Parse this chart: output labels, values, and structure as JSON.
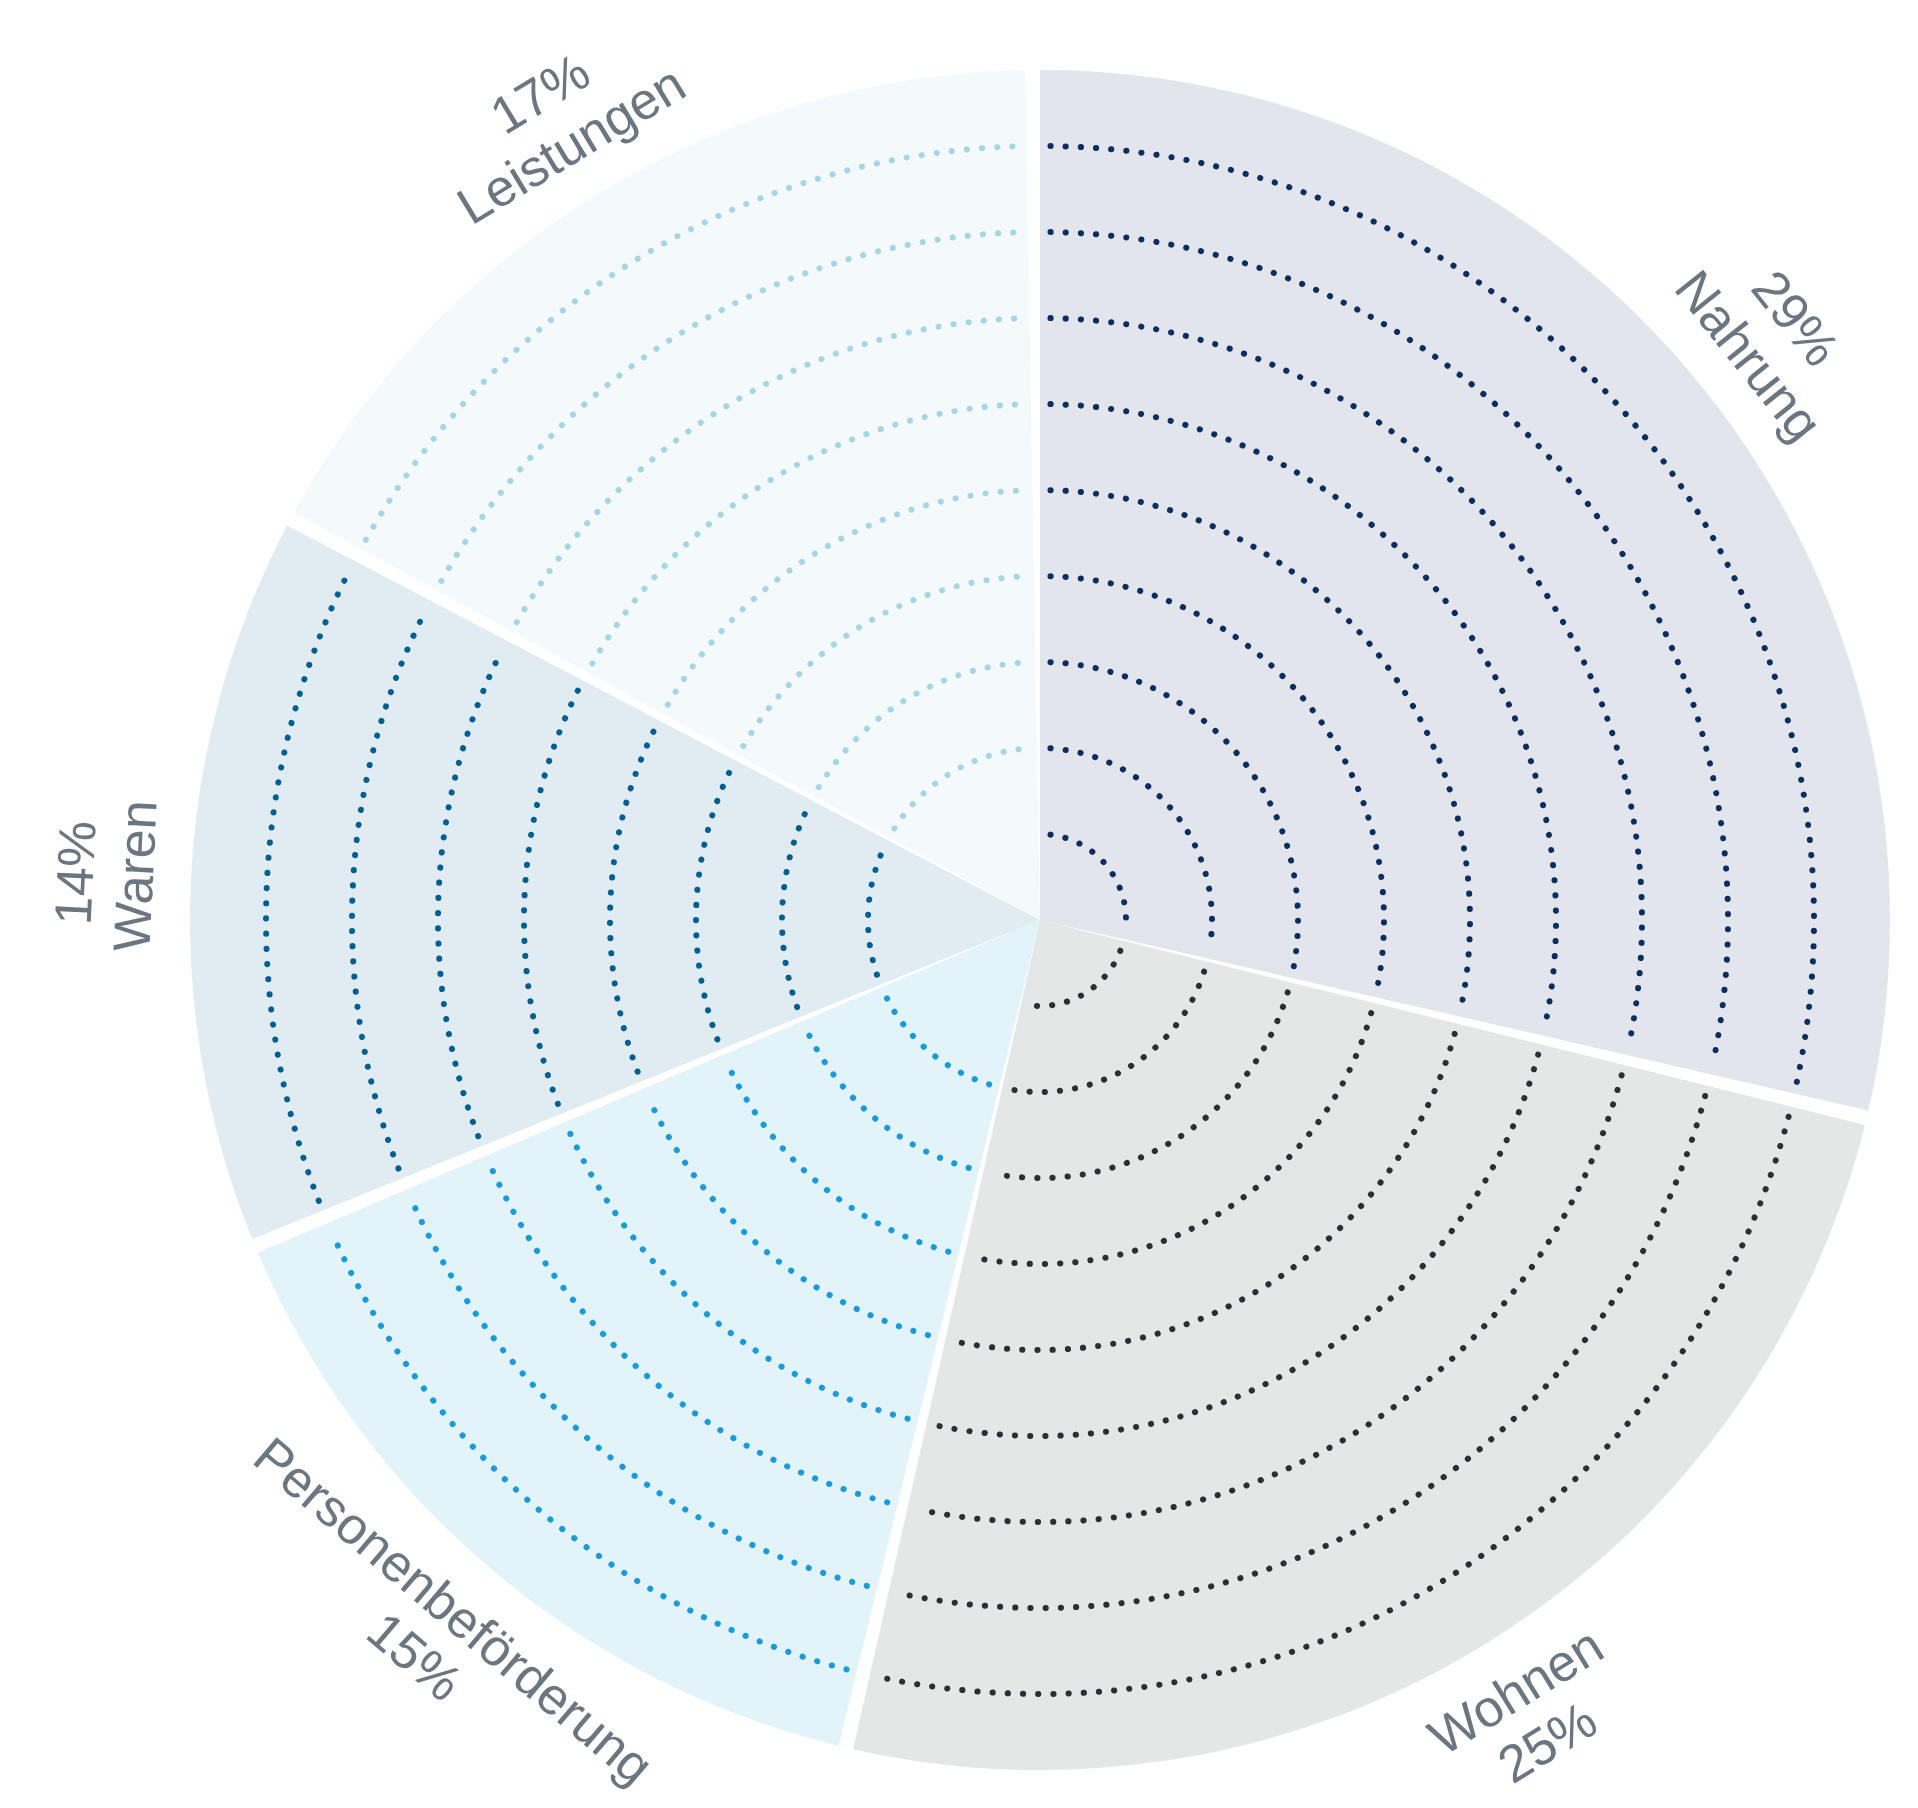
{
  "chart_data": {
    "type": "pie",
    "categories": [
      "Nahrung",
      "Wohnen",
      "Personenbeförderung",
      "Waren",
      "Leistungen"
    ],
    "values": [
      29,
      25,
      15,
      14,
      17
    ],
    "value_labels": [
      "29%",
      "25%",
      "15%",
      "14%",
      "17%"
    ],
    "colors": [
      "#0d2d5e",
      "#2b2f33",
      "#1a9ad6",
      "#005f8f",
      "#a8d5e4"
    ],
    "legend": false
  }
}
